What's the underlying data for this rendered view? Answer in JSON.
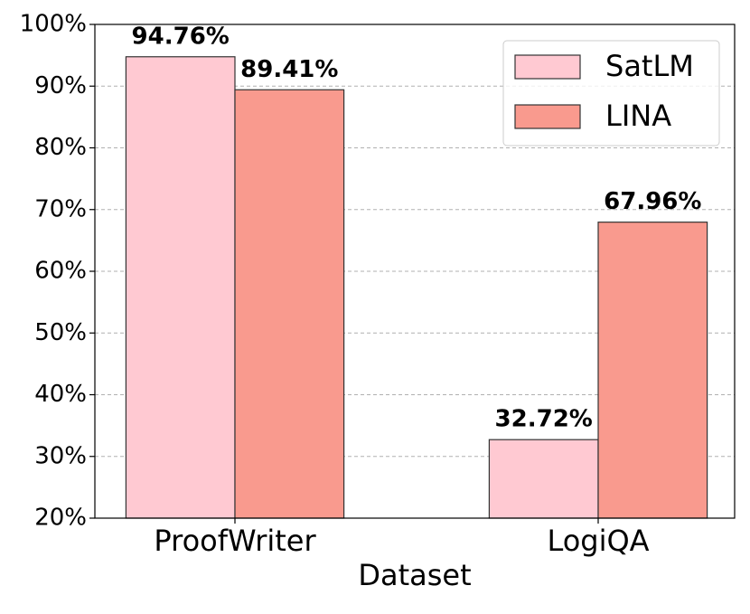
{
  "chart_data": {
    "type": "bar",
    "x_label": "Dataset",
    "categories": [
      "ProofWriter",
      "LogiQA"
    ],
    "series": [
      {
        "name": "SatLM",
        "color": "#ffc9d2",
        "values": [
          94.76,
          32.72
        ],
        "value_labels": [
          "94.76%",
          "32.72%"
        ]
      },
      {
        "name": "LINA",
        "color": "#f99a8e",
        "values": [
          89.41,
          67.96
        ],
        "value_labels": [
          "89.41%",
          "67.96%"
        ]
      }
    ],
    "ylim": [
      20,
      100
    ],
    "yticks": [
      {
        "value": 20,
        "label": "20%"
      },
      {
        "value": 30,
        "label": "30%"
      },
      {
        "value": 40,
        "label": "40%"
      },
      {
        "value": 50,
        "label": "50%"
      },
      {
        "value": 60,
        "label": "60%"
      },
      {
        "value": 70,
        "label": "70%"
      },
      {
        "value": 80,
        "label": "80%"
      },
      {
        "value": 90,
        "label": "90%"
      },
      {
        "value": 100,
        "label": "100%"
      }
    ],
    "grid": true,
    "legend": "upper right"
  }
}
